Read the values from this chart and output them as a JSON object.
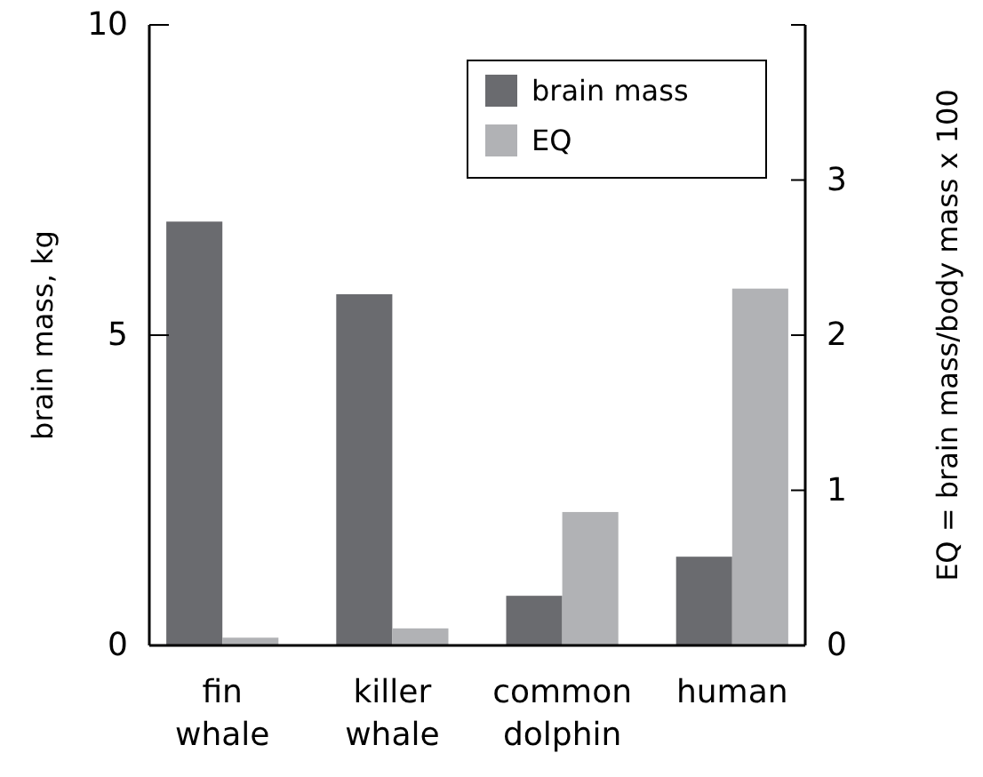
{
  "chart_data": {
    "type": "bar",
    "categories": [
      "fin\nwhale",
      "killer\nwhale",
      "common\ndolphin",
      "human"
    ],
    "series": [
      {
        "name": "brain mass",
        "color": "#6a6b6f",
        "values": [
          6.83,
          5.66,
          0.8,
          1.43
        ]
      },
      {
        "name": "EQ",
        "color": "#b1b2b5",
        "values": [
          0.05,
          0.11,
          0.86,
          2.3
        ],
        "axis": "y2"
      }
    ],
    "ylabel": "brain mass, kg",
    "y2label": "EQ = brain mass/body mass x 100",
    "ylim": [
      0,
      10
    ],
    "yticks": [
      0,
      5,
      10
    ],
    "y2lim": [
      0,
      4
    ],
    "y2ticks": [
      0,
      1,
      2,
      3
    ],
    "legend": "top right",
    "grid": false
  }
}
